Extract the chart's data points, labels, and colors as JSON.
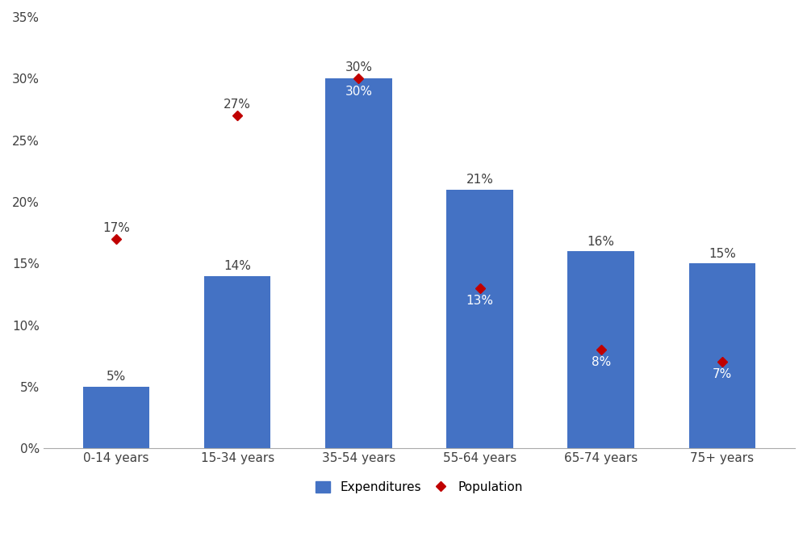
{
  "categories": [
    "0-14 years",
    "15-34 years",
    "35-54 years",
    "55-64 years",
    "65-74 years",
    "75+ years"
  ],
  "expenditures": [
    5,
    14,
    30,
    21,
    16,
    15
  ],
  "population": [
    17,
    27,
    30,
    13,
    8,
    7
  ],
  "bar_color": "#4472C4",
  "dot_color": "#C00000",
  "text_dark": "#404040",
  "text_white": "#FFFFFF",
  "ylim": [
    0,
    35
  ],
  "yticks": [
    0,
    5,
    10,
    15,
    20,
    25,
    30,
    35
  ],
  "ytick_labels": [
    "0%",
    "5%",
    "10%",
    "15%",
    "20%",
    "25%",
    "30%",
    "35%"
  ],
  "legend_expenditures": "Expenditures",
  "legend_population": "Population",
  "background_color": "#FFFFFF",
  "font_size_labels": 11,
  "font_size_ticks": 11,
  "font_size_legend": 11,
  "bar_width": 0.55,
  "exp_label_inside": [
    false,
    false,
    true,
    false,
    false,
    false
  ],
  "pop_label_white": [
    false,
    false,
    false,
    true,
    true,
    true
  ]
}
